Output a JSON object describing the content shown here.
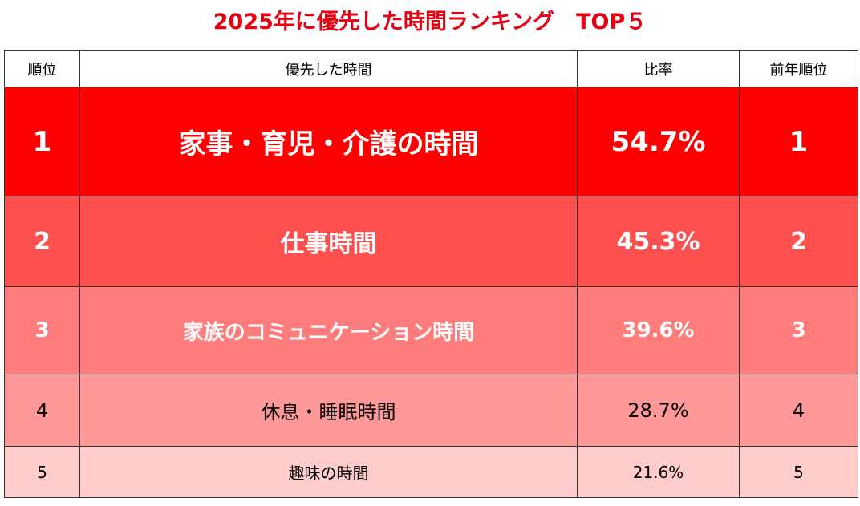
{
  "title": "2025年に優先した時間ランキング　TOP５",
  "table": {
    "header": [
      "順位",
      "優先した時間",
      "比率",
      "前年順位"
    ],
    "rows": [
      [
        "1",
        "家事・育児・介護の時間",
        "54.7%",
        "1"
      ],
      [
        "2",
        "仕事時間",
        "45.3%",
        "2"
      ],
      [
        "3",
        "家族のコミュニケーション時間",
        "39.6%",
        "3"
      ],
      [
        "4",
        "休息・睡眠時間",
        "28.7%",
        "4"
      ],
      [
        "5",
        "趣味の時間",
        "21.6%",
        "5"
      ]
    ]
  }
}
